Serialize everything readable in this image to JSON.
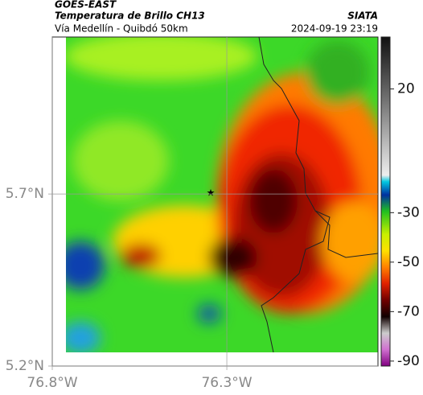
{
  "header": {
    "source": "GOES-EAST",
    "product": "Temperatura de Brillo CH13",
    "agency": "SIATA",
    "region": "Vía Medellín - Quibdó 50km",
    "timestamp": "2024-09-19 23:19"
  },
  "map": {
    "lonlim": [
      -76.8,
      -75.867
    ],
    "latlim": [
      5.2,
      6.156
    ],
    "lonticks": [
      {
        "value": -76.8,
        "label": "76.8°W"
      },
      {
        "value": -76.3,
        "label": "76.3°W"
      }
    ],
    "latticks": [
      {
        "value": 5.7,
        "label": "5.7°N"
      },
      {
        "value": 5.2,
        "label": "5.2°N"
      }
    ]
  },
  "colorbar": {
    "lim": [
      -92,
      41
    ],
    "ticks": [
      20,
      -30,
      -50,
      -70,
      -90
    ]
  }
}
